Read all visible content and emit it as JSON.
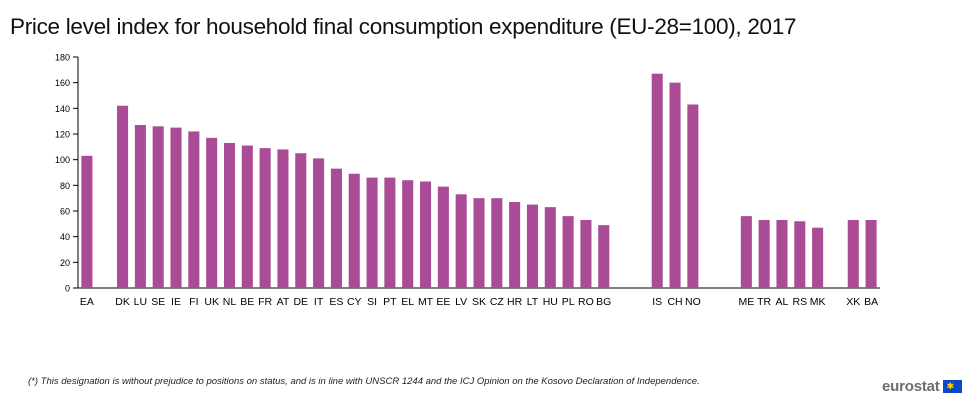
{
  "chart_data": {
    "type": "bar",
    "title": "Price level index for household final consumption expenditure (EU-28=100), 2017",
    "categories": [
      "EA",
      "",
      "DK",
      "LU",
      "SE",
      "IE",
      "FI",
      "UK",
      "NL",
      "BE",
      "FR",
      "AT",
      "DE",
      "IT",
      "ES",
      "CY",
      "SI",
      "PT",
      "EL",
      "MT",
      "EE",
      "LV",
      "SK",
      "CZ",
      "HR",
      "LT",
      "HU",
      "PL",
      "RO",
      "BG",
      "",
      "",
      "IS",
      "CH",
      "NO",
      "",
      "",
      "ME",
      "TR",
      "AL",
      "RS",
      "MK",
      "",
      "XK",
      "BA"
    ],
    "values": [
      103,
      null,
      142,
      127,
      126,
      125,
      122,
      117,
      113,
      111,
      109,
      108,
      105,
      101,
      93,
      89,
      86,
      86,
      84,
      83,
      79,
      73,
      70,
      70,
      67,
      65,
      63,
      56,
      53,
      49,
      null,
      null,
      167,
      160,
      143,
      null,
      null,
      56,
      53,
      53,
      52,
      47,
      null,
      53,
      53
    ],
    "ylim": [
      0,
      180
    ],
    "yticks": [
      0,
      20,
      40,
      60,
      80,
      100,
      120,
      140,
      160,
      180
    ],
    "bar_color": "#a94b95",
    "axis_color": "#000000",
    "grid": false
  },
  "footnote": "(*) This designation is without prejudice to positions on status, and is in line with UNSCR 1244 and the ICJ Opinion on the Kosovo Declaration of Independence.",
  "logo": {
    "text": "eurostat",
    "flag_color": "#0e47cb",
    "star_color": "#ffdd00"
  }
}
